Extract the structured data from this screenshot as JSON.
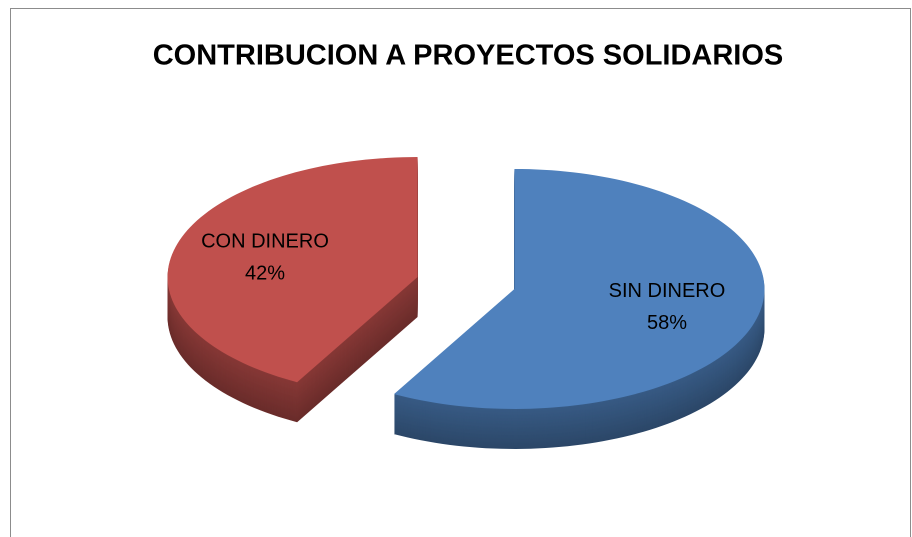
{
  "chart_data": {
    "type": "pie3d",
    "title": "CONTRIBUCION A PROYECTOS SOLIDARIOS",
    "categories": [
      "SIN DINERO",
      "CON DINERO"
    ],
    "values": [
      58,
      42
    ],
    "value_labels": [
      "58%",
      "42%"
    ],
    "colors": [
      "#4f81bd",
      "#c0504d"
    ]
  }
}
